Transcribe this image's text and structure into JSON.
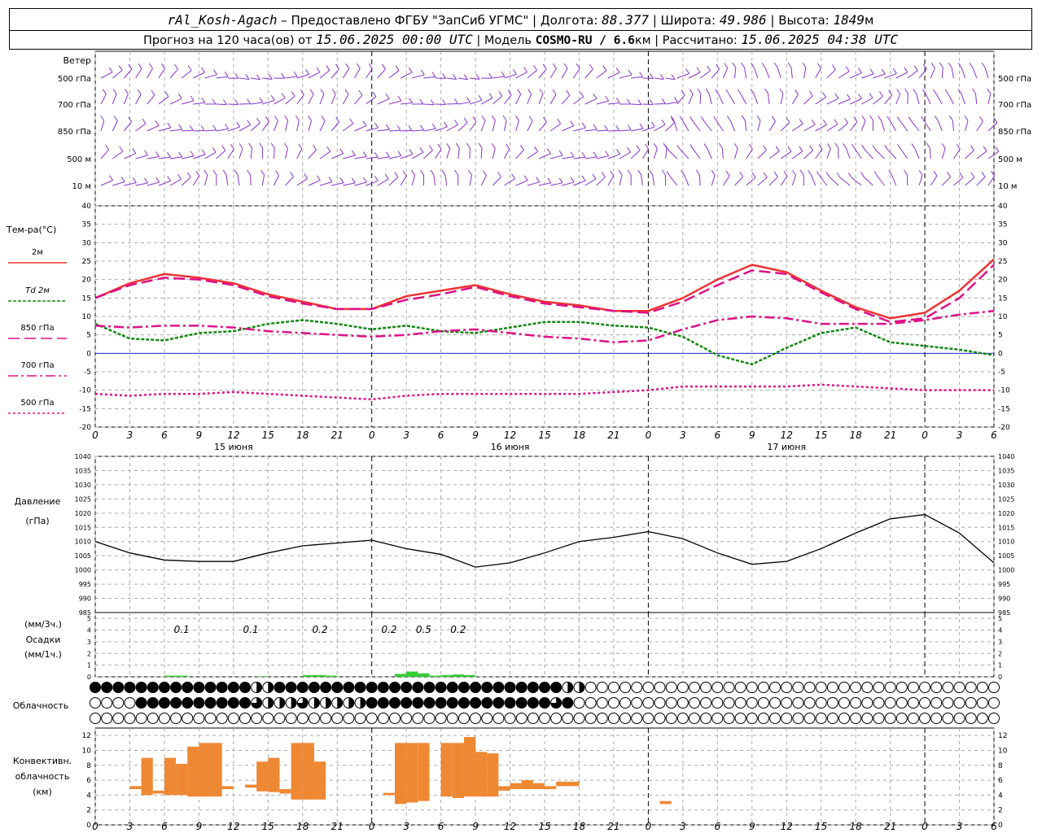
{
  "header": {
    "station": "rAl_Kosh-Agach",
    "provider": " – Предоставлено ФГБУ \"ЗапСиб УГМС\" | Долгота: ",
    "lon": "88.377",
    "lat_label": " | Широта: ",
    "lat": "49.986",
    "alt_label": " | Высота: ",
    "alt": "1849",
    "alt_unit": "м",
    "fc_label": "Прогноз на 120 часа(ов) от ",
    "fc_start": "15.06.2025 00:00 UTC",
    "model_label": "  | Модель ",
    "model": "COSMO-RU / 6.6",
    "model_unit": "км",
    "calc_label": " | Рассчитано: ",
    "calc_time": "15.06.2025 04:38 UTC"
  },
  "wind_panel": {
    "title": "Ветер",
    "levels": [
      "500 гПа",
      "700 гПа",
      "850 гПа",
      "500 м",
      "10  м"
    ]
  },
  "temp_panel": {
    "title": "Тем-ра(°C)",
    "legend": [
      {
        "label": "2м",
        "color": "#ee3333",
        "dash": ""
      },
      {
        "label": "Td  2м",
        "color": "#118811",
        "dash": "4,2"
      },
      {
        "label": "850 гПа",
        "color": "#dd1188",
        "dash": "14,6"
      },
      {
        "label": "700 гПа",
        "color": "#dd1188",
        "dash": "12,4,3,4"
      },
      {
        "label": "500 гПа",
        "color": "#dd1188",
        "dash": "3,3"
      }
    ]
  },
  "pressure_panel": {
    "title": "Давление",
    "unit": "(гПа)"
  },
  "precip_panel": {
    "title_top": "(мм/3ч.)",
    "title_mid": "Осадки",
    "title_bot": "(мм/1ч.)"
  },
  "cloud_panel": {
    "title": "Облачность"
  },
  "conv_panel": {
    "title_1": "Конвективн.",
    "title_2": "облачность",
    "title_3": "(км)"
  },
  "x_tick_labels": [
    "0",
    "3",
    "6",
    "9",
    "12",
    "15",
    "18",
    "21",
    "0",
    "3",
    "6",
    "9",
    "12",
    "15",
    "18",
    "21",
    "0",
    "3",
    "6",
    "9",
    "12",
    "15",
    "18",
    "21",
    "0",
    "3",
    "6"
  ],
  "day_labels": [
    "15 июня",
    "16 июня",
    "17 июня"
  ],
  "chart_data": {
    "type": "line",
    "x_hours": [
      0,
      3,
      6,
      9,
      12,
      15,
      18,
      21,
      24,
      27,
      30,
      33,
      36,
      39,
      42,
      45,
      48,
      51,
      54,
      57,
      60,
      63,
      66,
      69,
      72,
      75,
      78
    ],
    "temperature": {
      "ylim": [
        -20,
        40
      ],
      "yticks": [
        40,
        35,
        30,
        25,
        20,
        15,
        10,
        5,
        0,
        -5,
        -10,
        -15,
        -20
      ],
      "series": [
        {
          "name": "2м",
          "values": [
            15,
            19,
            21.5,
            20.5,
            19,
            16,
            14,
            12,
            12,
            15.5,
            17,
            18.5,
            16,
            14,
            13,
            11.5,
            11.5,
            15,
            20,
            24,
            22,
            17,
            12.5,
            9.5,
            11,
            17,
            25.5
          ]
        },
        {
          "name": "Td  2м",
          "values": [
            8,
            4,
            3.5,
            5.5,
            6,
            8,
            9,
            8,
            6.5,
            7.5,
            6,
            5.5,
            7,
            8.5,
            8.5,
            7.5,
            7,
            4.5,
            -0.5,
            -3,
            1.5,
            5.5,
            7,
            3,
            2,
            1,
            -0.5
          ]
        },
        {
          "name": "850 гПа",
          "values": [
            15,
            18.5,
            20.5,
            20,
            18.5,
            15.5,
            13.5,
            12,
            12,
            14.5,
            16,
            18,
            15.5,
            13.5,
            12.5,
            11.5,
            11,
            14,
            18.5,
            22.5,
            21.5,
            16.5,
            12,
            8.5,
            9.5,
            15,
            24
          ]
        },
        {
          "name": "700 гПа",
          "values": [
            7.5,
            7,
            7.5,
            7.5,
            7,
            6,
            5.5,
            5,
            4.5,
            5,
            6,
            6.5,
            5.5,
            4.5,
            4,
            3,
            3.5,
            6.5,
            9,
            10,
            9.5,
            8,
            8,
            8,
            9,
            10.5,
            11.5
          ]
        },
        {
          "name": "500 гПа",
          "values": [
            -11,
            -11.5,
            -11,
            -11,
            -10.5,
            -11,
            -11.5,
            -12,
            -12.5,
            -11.5,
            -11,
            -11,
            -11,
            -11,
            -11,
            -10.5,
            -10,
            -9,
            -9,
            -9,
            -9,
            -8.5,
            -9,
            -9.5,
            -10,
            -10,
            -10
          ]
        }
      ]
    },
    "pressure": {
      "ylim": [
        985,
        1040
      ],
      "yticks": [
        1040,
        1035,
        1030,
        1025,
        1020,
        1015,
        1010,
        1005,
        1000,
        995,
        990,
        985
      ],
      "values": [
        1010,
        1006,
        1003.5,
        1003,
        1003,
        1006,
        1008.5,
        1009.5,
        1010.5,
        1007.5,
        1005.5,
        1001,
        1002.5,
        1006,
        1010,
        1011.5,
        1013.5,
        1011,
        1006,
        1002,
        1003,
        1007.5,
        1013,
        1018,
        1019.5,
        1013,
        1002.5
      ]
    },
    "precipitation": {
      "ylim": [
        0,
        5
      ],
      "yticks": [
        5,
        4,
        3,
        2,
        1,
        0
      ],
      "three_hour_labels": [
        {
          "hour": 7.5,
          "text": "0.1"
        },
        {
          "hour": 13.5,
          "text": "0.1"
        },
        {
          "hour": 19.5,
          "text": "0.2"
        },
        {
          "hour": 25.5,
          "text": "0.2"
        },
        {
          "hour": 28.5,
          "text": "0.5"
        },
        {
          "hour": 31.5,
          "text": "0.2"
        }
      ],
      "hourly_bars": [
        {
          "hour": 6,
          "value": 0.1
        },
        {
          "hour": 7,
          "value": 0.1
        },
        {
          "hour": 14,
          "value": 0.05
        },
        {
          "hour": 18,
          "value": 0.15
        },
        {
          "hour": 19,
          "value": 0.15
        },
        {
          "hour": 20,
          "value": 0.1
        },
        {
          "hour": 26,
          "value": 0.25
        },
        {
          "hour": 27,
          "value": 0.45
        },
        {
          "hour": 28,
          "value": 0.3
        },
        {
          "hour": 29,
          "value": 0.1
        },
        {
          "hour": 30,
          "value": 0.15
        },
        {
          "hour": 31,
          "value": 0.2
        },
        {
          "hour": 32,
          "value": 0.15
        }
      ]
    },
    "convective_cloud": {
      "ylim": [
        0,
        13
      ],
      "yticks": [
        12,
        10,
        8,
        6,
        4,
        2,
        0
      ],
      "bars": [
        {
          "hour": 3.5,
          "bottom": 4.8,
          "top": 5.2
        },
        {
          "hour": 4.5,
          "bottom": 4.0,
          "top": 9.0
        },
        {
          "hour": 5.5,
          "bottom": 4.2,
          "top": 4.6
        },
        {
          "hour": 6.5,
          "bottom": 4.0,
          "top": 9.0
        },
        {
          "hour": 7.5,
          "bottom": 4.0,
          "top": 8.2
        },
        {
          "hour": 8.5,
          "bottom": 3.8,
          "top": 10.5
        },
        {
          "hour": 9.5,
          "bottom": 3.8,
          "top": 11.0
        },
        {
          "hour": 10.5,
          "bottom": 3.8,
          "top": 11.0
        },
        {
          "hour": 11.5,
          "bottom": 4.8,
          "top": 5.2
        },
        {
          "hour": 13.5,
          "bottom": 5.0,
          "top": 5.4
        },
        {
          "hour": 14.5,
          "bottom": 4.5,
          "top": 8.5
        },
        {
          "hour": 15.5,
          "bottom": 4.4,
          "top": 9.0
        },
        {
          "hour": 16.5,
          "bottom": 4.2,
          "top": 4.8
        },
        {
          "hour": 17.5,
          "bottom": 3.4,
          "top": 11.0
        },
        {
          "hour": 18.5,
          "bottom": 3.4,
          "top": 11.0
        },
        {
          "hour": 19.5,
          "bottom": 3.4,
          "top": 8.5
        },
        {
          "hour": 25.5,
          "bottom": 4.0,
          "top": 4.3
        },
        {
          "hour": 26.5,
          "bottom": 2.8,
          "top": 11.0
        },
        {
          "hour": 27.5,
          "bottom": 3.0,
          "top": 11.0
        },
        {
          "hour": 28.5,
          "bottom": 3.2,
          "top": 11.0
        },
        {
          "hour": 30.5,
          "bottom": 3.8,
          "top": 11.0
        },
        {
          "hour": 31.5,
          "bottom": 3.6,
          "top": 11.0
        },
        {
          "hour": 32.5,
          "bottom": 3.8,
          "top": 11.8
        },
        {
          "hour": 33.5,
          "bottom": 3.8,
          "top": 9.8
        },
        {
          "hour": 34.5,
          "bottom": 3.8,
          "top": 9.6
        },
        {
          "hour": 35.5,
          "bottom": 4.6,
          "top": 5.2
        },
        {
          "hour": 36.5,
          "bottom": 4.8,
          "top": 5.6
        },
        {
          "hour": 37.5,
          "bottom": 4.8,
          "top": 6.0
        },
        {
          "hour": 38.5,
          "bottom": 4.8,
          "top": 5.6
        },
        {
          "hour": 39.5,
          "bottom": 4.8,
          "top": 5.2
        },
        {
          "hour": 40.5,
          "bottom": 5.2,
          "top": 5.8
        },
        {
          "hour": 41.5,
          "bottom": 5.2,
          "top": 5.8
        },
        {
          "hour": 49.5,
          "bottom": 2.8,
          "top": 3.2
        }
      ]
    },
    "cloud_cover_rows": [
      "8888888888888844888888888888888888888888844000000000000000000000000000000000000000000000",
      "0000888888888864446444448888888888888888680000000000000000000000000000000000000000000000",
      "0000000000000000000000000000000000000000000000000000000000000000000000000000000000000000"
    ]
  }
}
